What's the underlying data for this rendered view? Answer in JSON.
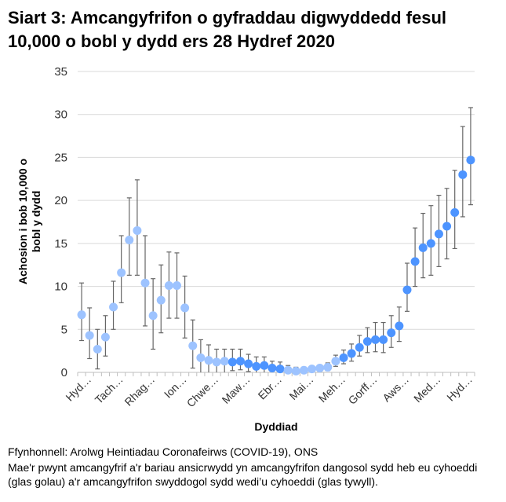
{
  "chart_data": {
    "type": "scatter",
    "title": "Siart 3: Amcangyfrifon o gyfraddau digwyddedd fesul 10,000 o bobl y dydd ers 28 Hydref 2020",
    "xlabel": "Dyddiad",
    "ylabel": "Achosion i bob 10,000 o bobl y dydd",
    "ylim": [
      0,
      35
    ],
    "yticks": [
      0,
      5,
      10,
      15,
      20,
      25,
      30,
      35
    ],
    "grid": true,
    "x_tick_labels": [
      "Hyd…",
      "Tach…",
      "Rhag…",
      "Ion…",
      "Chwe…",
      "Maw…",
      "Ebr…",
      "Mai…",
      "Meh…",
      "Gorff…",
      "Aws…",
      "Med…",
      "Hyd…"
    ],
    "colors": {
      "provisional": "#9DC3FF",
      "official": "#4D94FF",
      "error_bar": "#666666"
    },
    "series": [
      {
        "status": "provisional",
        "legend_text": "glas golau"
      },
      {
        "status": "official",
        "legend_text": "glas tywyll"
      }
    ],
    "points": [
      {
        "y": 6.7,
        "lo": 3.7,
        "hi": 10.4,
        "s": "provisional"
      },
      {
        "y": 4.3,
        "lo": 1.6,
        "hi": 7.5,
        "s": "provisional"
      },
      {
        "y": 2.7,
        "lo": 0.4,
        "hi": 5.0,
        "s": "provisional"
      },
      {
        "y": 4.1,
        "lo": 1.9,
        "hi": 6.6,
        "s": "provisional"
      },
      {
        "y": 7.6,
        "lo": 5.0,
        "hi": 10.6,
        "s": "provisional"
      },
      {
        "y": 11.6,
        "lo": 8.1,
        "hi": 15.9,
        "s": "provisional"
      },
      {
        "y": 15.4,
        "lo": 11.3,
        "hi": 20.3,
        "s": "provisional"
      },
      {
        "y": 16.5,
        "lo": 11.3,
        "hi": 22.4,
        "s": "provisional"
      },
      {
        "y": 10.4,
        "lo": 5.4,
        "hi": 15.9,
        "s": "provisional"
      },
      {
        "y": 6.6,
        "lo": 2.7,
        "hi": 10.9,
        "s": "provisional"
      },
      {
        "y": 8.4,
        "lo": 4.6,
        "hi": 12.5,
        "s": "provisional"
      },
      {
        "y": 10.1,
        "lo": 6.3,
        "hi": 14.0,
        "s": "provisional"
      },
      {
        "y": 10.1,
        "lo": 6.3,
        "hi": 13.9,
        "s": "provisional"
      },
      {
        "y": 7.5,
        "lo": 4.0,
        "hi": 11.2,
        "s": "provisional"
      },
      {
        "y": 3.1,
        "lo": 0.5,
        "hi": 6.1,
        "s": "provisional"
      },
      {
        "y": 1.7,
        "lo": 0,
        "hi": 3.8,
        "s": "provisional"
      },
      {
        "y": 1.4,
        "lo": 0,
        "hi": 3.2,
        "s": "provisional"
      },
      {
        "y": 1.2,
        "lo": 0,
        "hi": 2.7,
        "s": "provisional"
      },
      {
        "y": 1.3,
        "lo": 0,
        "hi": 2.7,
        "s": "provisional"
      },
      {
        "y": 1.2,
        "lo": 0.2,
        "hi": 2.7,
        "s": "official"
      },
      {
        "y": 1.3,
        "lo": 0.3,
        "hi": 2.7,
        "s": "official"
      },
      {
        "y": 1.0,
        "lo": 0.1,
        "hi": 2.1,
        "s": "official"
      },
      {
        "y": 0.7,
        "lo": 0,
        "hi": 1.8,
        "s": "official"
      },
      {
        "y": 0.8,
        "lo": 0,
        "hi": 1.8,
        "s": "official"
      },
      {
        "y": 0.5,
        "lo": 0,
        "hi": 1.3,
        "s": "official"
      },
      {
        "y": 0.4,
        "lo": 0,
        "hi": 1.2,
        "s": "official"
      },
      {
        "y": 0.25,
        "lo": 0,
        "hi": 0.8,
        "s": "provisional"
      },
      {
        "y": 0.15,
        "lo": 0,
        "hi": 0.6,
        "s": "provisional"
      },
      {
        "y": 0.25,
        "lo": 0,
        "hi": 0.6,
        "s": "provisional"
      },
      {
        "y": 0.4,
        "lo": 0,
        "hi": 0.7,
        "s": "provisional"
      },
      {
        "y": 0.5,
        "lo": 0.1,
        "hi": 0.85,
        "s": "provisional"
      },
      {
        "y": 0.6,
        "lo": 0.2,
        "hi": 1.1,
        "s": "provisional"
      },
      {
        "y": 1.3,
        "lo": 0.7,
        "hi": 2.0,
        "s": "provisional"
      },
      {
        "y": 1.7,
        "lo": 1.0,
        "hi": 2.6,
        "s": "official"
      },
      {
        "y": 2.2,
        "lo": 1.3,
        "hi": 3.3,
        "s": "official"
      },
      {
        "y": 2.9,
        "lo": 1.9,
        "hi": 4.3,
        "s": "official"
      },
      {
        "y": 3.6,
        "lo": 2.3,
        "hi": 5.2,
        "s": "official"
      },
      {
        "y": 3.8,
        "lo": 2.4,
        "hi": 5.8,
        "s": "official"
      },
      {
        "y": 3.8,
        "lo": 2.3,
        "hi": 5.8,
        "s": "official"
      },
      {
        "y": 4.6,
        "lo": 2.9,
        "hi": 6.6,
        "s": "official"
      },
      {
        "y": 5.4,
        "lo": 3.6,
        "hi": 7.6,
        "s": "official"
      },
      {
        "y": 9.6,
        "lo": 7.1,
        "hi": 12.7,
        "s": "official"
      },
      {
        "y": 12.9,
        "lo": 10.0,
        "hi": 16.8,
        "s": "official"
      },
      {
        "y": 14.5,
        "lo": 11.0,
        "hi": 18.5,
        "s": "official"
      },
      {
        "y": 15.0,
        "lo": 11.3,
        "hi": 19.4,
        "s": "official"
      },
      {
        "y": 16.1,
        "lo": 12.3,
        "hi": 20.6,
        "s": "official"
      },
      {
        "y": 17.0,
        "lo": 13.2,
        "hi": 21.4,
        "s": "official"
      },
      {
        "y": 18.6,
        "lo": 14.4,
        "hi": 23.5,
        "s": "official"
      },
      {
        "y": 23.0,
        "lo": 18.1,
        "hi": 28.6,
        "s": "official"
      },
      {
        "y": 24.7,
        "lo": 19.5,
        "hi": 30.8,
        "s": "official"
      }
    ]
  },
  "notes": {
    "source": "Ffynhonnell: Arolwg Heintiadau Coronafeirws (COVID-19), ONS",
    "explanation": "Mae'r pwynt amcangyfrif a'r bariau ansicrwydd yn amcangyfrifon dangosol sydd heb eu cyhoeddi (glas golau) a'r amcangyfrifon swyddogol sydd wedi’u cyhoeddi (glas tywyll)."
  }
}
